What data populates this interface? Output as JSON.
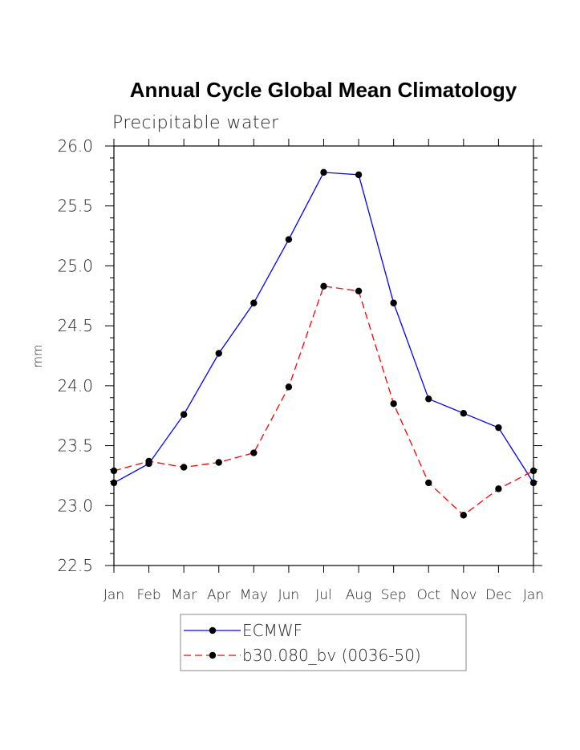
{
  "chart_data": {
    "type": "line",
    "title": "Annual Cycle Global Mean Climatology",
    "subtitle": "Precipitable water",
    "xlabel": "",
    "ylabel": "mm",
    "categories": [
      "Jan",
      "Feb",
      "Mar",
      "Apr",
      "May",
      "Jun",
      "Jul",
      "Aug",
      "Sep",
      "Oct",
      "Nov",
      "Dec",
      "Jan"
    ],
    "ylim": [
      22.5,
      26.0
    ],
    "yticks": [
      "22.5",
      "23.0",
      "23.5",
      "24.0",
      "24.5",
      "25.0",
      "25.5",
      "26.0"
    ],
    "grid": false,
    "legend_position": "bottom",
    "series": [
      {
        "name": "ECMWF",
        "color": "#0000ff",
        "style": "solid",
        "values": [
          23.19,
          23.35,
          23.76,
          24.27,
          24.69,
          25.22,
          25.78,
          25.76,
          24.69,
          23.89,
          23.77,
          23.65,
          23.19
        ]
      },
      {
        "name": "b30.080_bv (0036-50)",
        "color": "#ff0000",
        "style": "dashed",
        "values": [
          23.29,
          23.37,
          23.32,
          23.36,
          23.44,
          23.99,
          24.83,
          24.79,
          23.85,
          23.19,
          22.92,
          23.14,
          23.29
        ]
      }
    ]
  }
}
